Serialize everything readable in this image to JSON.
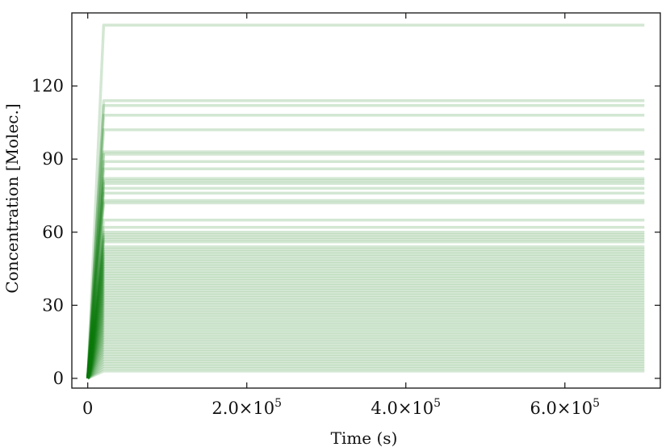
{
  "chart_data": {
    "type": "line",
    "title": "",
    "xlabel": "Time (s)",
    "ylabel": "Concentration [Molec.]",
    "xlim": [
      -20000,
      720000
    ],
    "ylim": [
      -4,
      150
    ],
    "x_ticks": [
      {
        "value": 0,
        "label": "0"
      },
      {
        "value": 200000,
        "mantissa": "2.0×10",
        "exp": "5"
      },
      {
        "value": 400000,
        "mantissa": "4.0×10",
        "exp": "5"
      },
      {
        "value": 600000,
        "mantissa": "6.0×10",
        "exp": "5"
      }
    ],
    "y_ticks": [
      {
        "value": 0,
        "label": "0"
      },
      {
        "value": 30,
        "label": "30"
      },
      {
        "value": 60,
        "label": "60"
      },
      {
        "value": 90,
        "label": "90"
      },
      {
        "value": 120,
        "label": "120"
      }
    ],
    "line_color": "#0a7a0a",
    "line_opacity": 0.18,
    "rise_end_x": 20000,
    "t_end": 700000,
    "series_plateaus": [
      145,
      114,
      112,
      108,
      102,
      93,
      92,
      89,
      86,
      82,
      81,
      80,
      78,
      76,
      73,
      72,
      65,
      62,
      60,
      59,
      58,
      57,
      56,
      54,
      53,
      52,
      51,
      50,
      49,
      48,
      47,
      46,
      45,
      44,
      43,
      42,
      41,
      40,
      39,
      38,
      37,
      36,
      35,
      34,
      33,
      32,
      31,
      30,
      29,
      28,
      27,
      26,
      25,
      24,
      23,
      22,
      21,
      20,
      19,
      18,
      17,
      16,
      15,
      14,
      13,
      12,
      11,
      10,
      9,
      8,
      7,
      6,
      5,
      4,
      3
    ]
  }
}
